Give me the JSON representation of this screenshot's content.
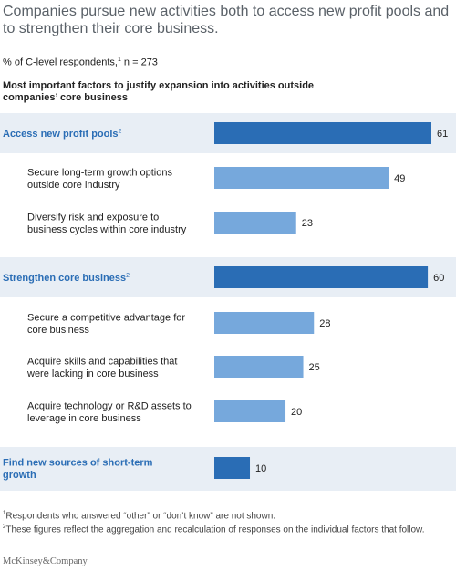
{
  "title": "Companies pursue new activities both to access new profit pools and to strengthen their core business.",
  "subtitle": {
    "text": "% of C-level respondents,",
    "footnote_mark": "1",
    "sample": "n = 273"
  },
  "chart_heading": "Most important factors to justify expansion into activities outside companies’ core business",
  "colors": {
    "group_bar": "#2a6db5",
    "item_bar": "#76a8dc",
    "group_label": "#2a6db5",
    "group_band": "#e8eef5"
  },
  "chart_data": {
    "type": "bar",
    "orientation": "horizontal",
    "xlim": [
      0,
      61
    ],
    "categories": [
      {
        "label": "Access new profit pools",
        "footnote_mark": "2",
        "value": 61,
        "level": "group"
      },
      {
        "label": "Secure long-term growth options outside core industry",
        "value": 49,
        "level": "item"
      },
      {
        "label": "Diversify risk and exposure to business cycles within core industry",
        "value": 23,
        "level": "item"
      },
      {
        "label": "Strengthen core business",
        "footnote_mark": "2",
        "value": 60,
        "level": "group"
      },
      {
        "label": "Secure a competitive advantage for core business",
        "value": 28,
        "level": "item"
      },
      {
        "label": "Acquire skills and capabilities that were lacking in core business",
        "value": 25,
        "level": "item"
      },
      {
        "label": "Acquire technology or R&D assets to leverage in core business",
        "value": 20,
        "level": "item"
      },
      {
        "label": "Find new sources of short-term growth",
        "value": 10,
        "level": "group"
      }
    ]
  },
  "footnotes": [
    {
      "mark": "1",
      "text": "Respondents who answered “other” or “don’t know” are not shown."
    },
    {
      "mark": "2",
      "text": "These figures reflect the aggregation and recalculation of responses on the individual factors that follow."
    }
  ],
  "source": "McKinsey&Company"
}
